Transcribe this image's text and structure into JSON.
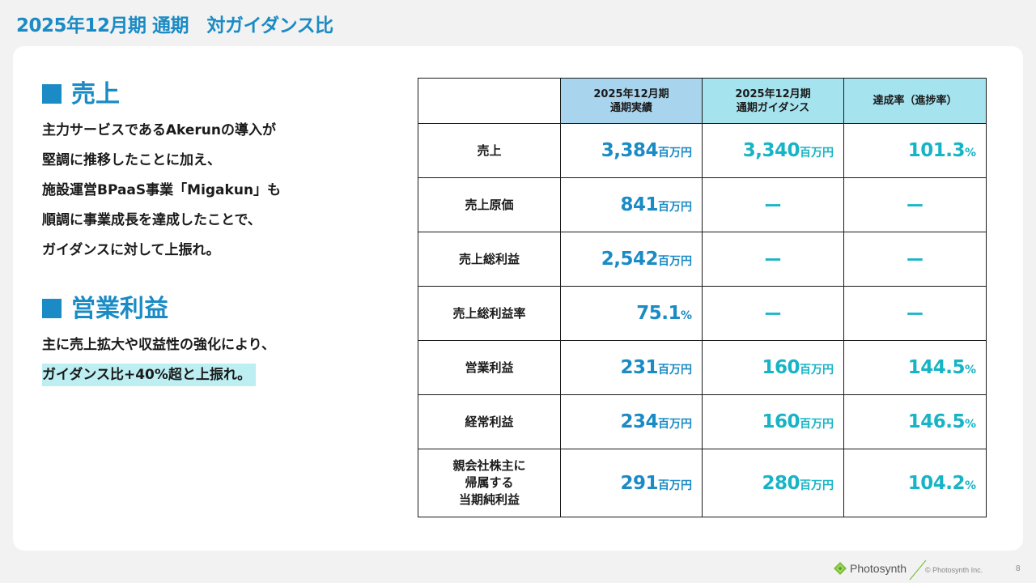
{
  "page_title": "2025年12月期 通期　対ガイダンス比",
  "sections": [
    {
      "heading": "売上",
      "lines": [
        "主力サービスであるAkerunの導入が",
        "堅調に推移したことに加え、",
        "施設運営BPaaS事業「Migakun」も",
        "順調に事業成長を達成したことで、",
        "ガイダンスに対して上振れ。"
      ]
    },
    {
      "heading": "営業利益",
      "lines": [
        "主に売上拡大や収益性の強化により、",
        "ガイダンス比+40%超と上振れ。"
      ]
    }
  ],
  "table": {
    "headers": {
      "col1": "2025年12月期\n通期実績",
      "col2": "2025年12月期\n通期ガイダンス",
      "col3": "達成率（進捗率）"
    },
    "rows": [
      {
        "label": "売上",
        "actual": "3,384",
        "actual_unit": "百万円",
        "guidance": "3,340",
        "guidance_unit": "百万円",
        "rate": "101.3",
        "rate_unit": "%"
      },
      {
        "label": "売上原価",
        "actual": "841",
        "actual_unit": "百万円",
        "guidance": "ー",
        "rate": "ー"
      },
      {
        "label": "売上総利益",
        "actual": "2,542",
        "actual_unit": "百万円",
        "guidance": "ー",
        "rate": "ー"
      },
      {
        "label": "売上総利益率",
        "actual": "75.1",
        "actual_unit": "%",
        "guidance": "ー",
        "rate": "ー"
      },
      {
        "label": "営業利益",
        "actual": "231",
        "actual_unit": "百万円",
        "guidance": "160",
        "guidance_unit": "百万円",
        "rate": "144.5",
        "rate_unit": "%"
      },
      {
        "label": "経常利益",
        "actual": "234",
        "actual_unit": "百万円",
        "guidance": "160",
        "guidance_unit": "百万円",
        "rate": "146.5",
        "rate_unit": "%"
      },
      {
        "label": "親会社株主に\n帰属する\n当期純利益",
        "actual": "291",
        "actual_unit": "百万円",
        "guidance": "280",
        "guidance_unit": "百万円",
        "rate": "104.2",
        "rate_unit": "%"
      }
    ]
  },
  "footer": {
    "logo_text": "Photosynth",
    "copyright": "© Photosynth Inc.",
    "page_number": "8"
  },
  "colors": {
    "accent_blue": "#1a8bc4",
    "accent_teal": "#17b4c6",
    "highlight": "#bdeef2",
    "header_blue": "#a8d4ee",
    "header_teal": "#a5e3ee",
    "logo_green": "#7cbf3a"
  },
  "icons": {
    "section_marker": "filled-square",
    "logo": "photosynth-leaf-logo"
  }
}
